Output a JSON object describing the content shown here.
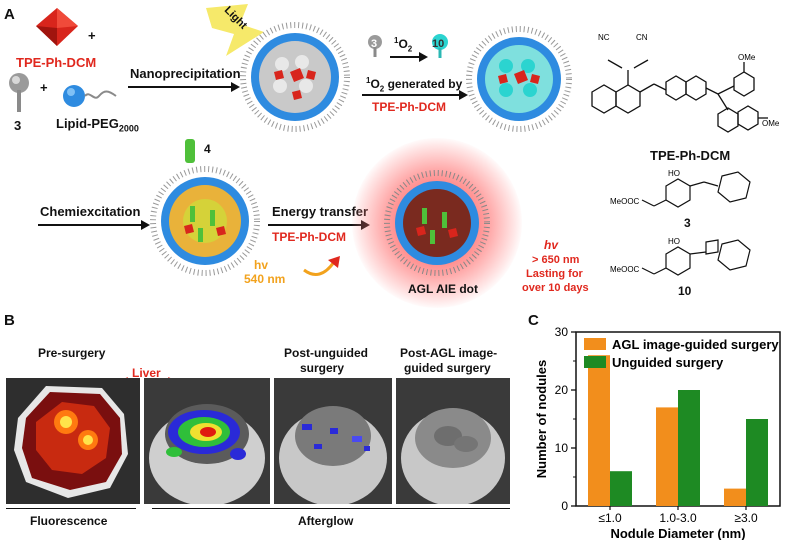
{
  "panel_a": {
    "label": "A",
    "tpe_name_top": "TPE-Ph-DCM",
    "plus": "+",
    "compound3_num": "3",
    "lipid_peg": "Lipid-PEG",
    "lipid_sub": "2000",
    "nanoprecipitation": "Nanoprecipitation",
    "light": "Light",
    "step_3": "3",
    "singlet_o2": "O",
    "o2_sup": "1",
    "o2_sub": "2",
    "step_10": "10",
    "o2_generated_prefix": "O",
    "o2_generated_rest": " generated by",
    "o2_generated_by": "TPE-Ph-DCM",
    "chemiexcitation": "Chemiexcitation",
    "step_4": "4",
    "energy_transfer": "Energy transfer",
    "energy_transfer_by": "TPE-Ph-DCM",
    "hv": "hv",
    "hv_540": "540 nm",
    "agl_aie_dot": "AGL AIE dot",
    "emission_hv": "hv",
    "emission_lines": [
      "> 650 nm",
      "Lasting for",
      "over 10 days"
    ],
    "struct_tpe_label": "TPE-Ph-DCM",
    "struct_3_label": "3",
    "struct_10_label": "10",
    "meoocc": "MeOOC",
    "ho": "HO",
    "ome": "OMe",
    "nc": "NC",
    "cn": "CN"
  },
  "panel_b": {
    "label": "B",
    "pre_surgery": "Pre-surgery",
    "liver": "Liver",
    "post_unguided": [
      "Post-unguided",
      "surgery"
    ],
    "post_agl": [
      "Post-AGL image-",
      "guided surgery"
    ],
    "fluorescence": "Fluorescence",
    "afterglow": "Afterglow"
  },
  "panel_c": {
    "label": "C"
  },
  "chart_data": {
    "type": "bar",
    "categories": [
      "≤1.0",
      "1.0-3.0",
      "≥3.0"
    ],
    "series": [
      {
        "name": "AGL image-guided surgery",
        "color": "#f28e1c",
        "values": [
          26,
          17,
          3
        ]
      },
      {
        "name": "Unguided surgery",
        "color": "#1e8a23",
        "values": [
          6,
          20,
          15
        ]
      }
    ],
    "xlabel": "Nodule Diameter (nm)",
    "ylabel": "Number of nodules",
    "ylim": [
      0,
      30
    ],
    "yticks": [
      0,
      10,
      20,
      30
    ],
    "legend": "top-left"
  }
}
